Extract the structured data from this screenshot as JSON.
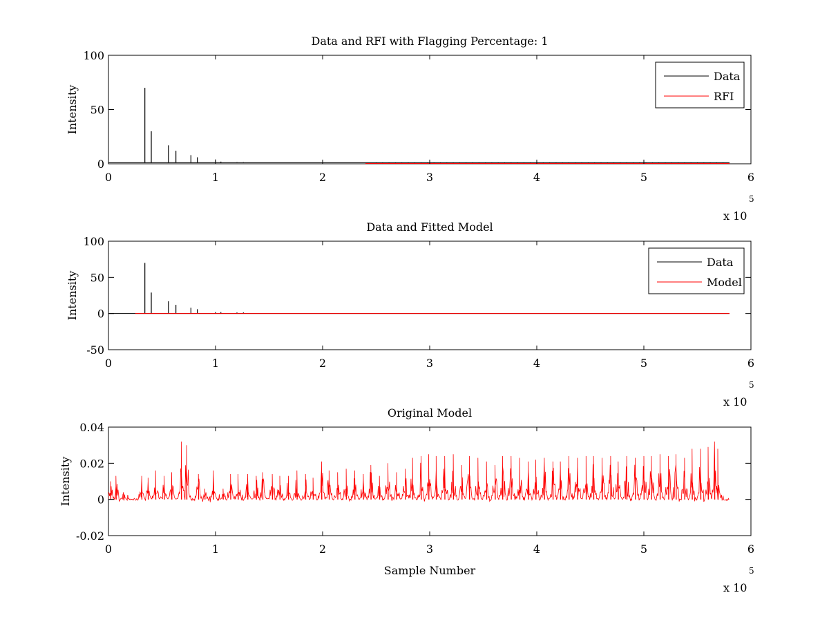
{
  "chart_data": [
    {
      "type": "line",
      "title": "Data and RFI with Flagging Percentage: 1",
      "xlabel": "",
      "ylabel": "Intensity",
      "xlim": [
        0,
        600000
      ],
      "ylim": [
        0,
        100
      ],
      "xticks": [
        0,
        1,
        2,
        3,
        4,
        5,
        6
      ],
      "xtick_labels": [
        "0",
        "1",
        "2",
        "3",
        "4",
        "5",
        "6"
      ],
      "yticks": [
        0,
        50,
        100
      ],
      "ytick_labels": [
        "0",
        "50",
        "100"
      ],
      "exponent_label": "x 10",
      "exponent_power": "5",
      "legend": {
        "placement": "top-right",
        "entries": [
          "Data",
          "RFI"
        ]
      },
      "series": [
        {
          "name": "Data",
          "color": "#000000",
          "baseline": 1,
          "baseline_x": [
            0,
            580000
          ],
          "spikes": [
            [
              34000,
              70
            ],
            [
              40000,
              30
            ],
            [
              56000,
              17
            ],
            [
              63000,
              12
            ],
            [
              77000,
              8
            ],
            [
              83000,
              6
            ],
            [
              100000,
              4
            ],
            [
              105000,
              2
            ],
            [
              120000,
              1.5
            ],
            [
              126000,
              1.5
            ]
          ]
        },
        {
          "name": "RFI",
          "color": "#ff0000",
          "baseline": 0.3,
          "baseline_x": [
            240000,
            580000
          ],
          "spikes": []
        }
      ]
    },
    {
      "type": "line",
      "title": "Data and Fitted Model",
      "xlabel": "",
      "ylabel": "Intensity",
      "xlim": [
        0,
        600000
      ],
      "ylim": [
        -50,
        100
      ],
      "xticks": [
        0,
        1,
        2,
        3,
        4,
        5,
        6
      ],
      "xtick_labels": [
        "0",
        "1",
        "2",
        "3",
        "4",
        "5",
        "6"
      ],
      "yticks": [
        -50,
        0,
        50,
        100
      ],
      "ytick_labels": [
        "-50",
        "0",
        "50",
        "100"
      ],
      "exponent_label": "x 10",
      "exponent_power": "5",
      "legend": {
        "placement": "top-right",
        "entries": [
          "Data",
          "Model"
        ]
      },
      "series": [
        {
          "name": "Data",
          "color": "#000000",
          "baseline": 0,
          "baseline_x": [
            0,
            580000
          ],
          "spikes": [
            [
              34000,
              70
            ],
            [
              40000,
              29
            ],
            [
              56000,
              17
            ],
            [
              63000,
              12
            ],
            [
              77000,
              8
            ],
            [
              83000,
              6
            ],
            [
              100000,
              2
            ],
            [
              105000,
              2
            ],
            [
              120000,
              1.5
            ],
            [
              126000,
              1.5
            ]
          ]
        },
        {
          "name": "Model",
          "color": "#ff0000",
          "baseline": 0,
          "baseline_x": [
            25000,
            580000
          ],
          "spikes": []
        }
      ]
    },
    {
      "type": "line",
      "title": "Original Model",
      "xlabel": "Sample Number",
      "ylabel": "Intensity",
      "xlim": [
        0,
        600000
      ],
      "ylim": [
        -0.02,
        0.04
      ],
      "xticks": [
        0,
        1,
        2,
        3,
        4,
        5,
        6
      ],
      "xtick_labels": [
        "0",
        "1",
        "2",
        "3",
        "4",
        "5",
        "6"
      ],
      "yticks": [
        -0.02,
        0,
        0.02,
        0.04
      ],
      "ytick_labels": [
        "-0.02",
        "0",
        "0.02",
        "0.04"
      ],
      "exponent_label": "x 10",
      "exponent_power": "5",
      "legend": null,
      "series": [
        {
          "name": "Model",
          "color": "#ff0000",
          "x_end": 580000,
          "bursts": [
            [
              2000,
              0.01
            ],
            [
              7000,
              0.013
            ],
            [
              14000,
              0.004
            ],
            [
              31000,
              0.013
            ],
            [
              37000,
              0.012
            ],
            [
              44000,
              0.016
            ],
            [
              52000,
              0.013
            ],
            [
              59000,
              0.015
            ],
            [
              68000,
              0.032
            ],
            [
              73000,
              0.03
            ],
            [
              84000,
              0.014
            ],
            [
              90000,
              0.006
            ],
            [
              98000,
              0.016
            ],
            [
              107000,
              0.006
            ],
            [
              114000,
              0.014
            ],
            [
              121000,
              0.014
            ],
            [
              130000,
              0.014
            ],
            [
              138000,
              0.013
            ],
            [
              144000,
              0.015
            ],
            [
              153000,
              0.014
            ],
            [
              160000,
              0.013
            ],
            [
              168000,
              0.013
            ],
            [
              176000,
              0.016
            ],
            [
              184000,
              0.014
            ],
            [
              191000,
              0.012
            ],
            [
              199000,
              0.021
            ],
            [
              206000,
              0.016
            ],
            [
              214000,
              0.015
            ],
            [
              222000,
              0.017
            ],
            [
              230000,
              0.016
            ],
            [
              238000,
              0.014
            ],
            [
              245000,
              0.019
            ],
            [
              253000,
              0.013
            ],
            [
              261000,
              0.02
            ],
            [
              269000,
              0.015
            ],
            [
              277000,
              0.017
            ],
            [
              284000,
              0.023
            ],
            [
              292000,
              0.024
            ],
            [
              299000,
              0.025
            ],
            [
              306000,
              0.024
            ],
            [
              314000,
              0.024
            ],
            [
              322000,
              0.025
            ],
            [
              330000,
              0.019
            ],
            [
              337000,
              0.024
            ],
            [
              345000,
              0.023
            ],
            [
              353000,
              0.021
            ],
            [
              361000,
              0.019
            ],
            [
              368000,
              0.024
            ],
            [
              376000,
              0.024
            ],
            [
              384000,
              0.023
            ],
            [
              392000,
              0.021
            ],
            [
              399000,
              0.022
            ],
            [
              407000,
              0.023
            ],
            [
              415000,
              0.021
            ],
            [
              422000,
              0.021
            ],
            [
              430000,
              0.024
            ],
            [
              438000,
              0.023
            ],
            [
              446000,
              0.024
            ],
            [
              453000,
              0.024
            ],
            [
              461000,
              0.023
            ],
            [
              469000,
              0.024
            ],
            [
              476000,
              0.021
            ],
            [
              484000,
              0.024
            ],
            [
              492000,
              0.023
            ],
            [
              500000,
              0.024
            ],
            [
              507000,
              0.024
            ],
            [
              515000,
              0.025
            ],
            [
              523000,
              0.024
            ],
            [
              530000,
              0.025
            ],
            [
              538000,
              0.023
            ],
            [
              545000,
              0.028
            ],
            [
              553000,
              0.028
            ],
            [
              560000,
              0.029
            ],
            [
              566000,
              0.032
            ],
            [
              569000,
              0.028
            ]
          ]
        }
      ]
    }
  ]
}
